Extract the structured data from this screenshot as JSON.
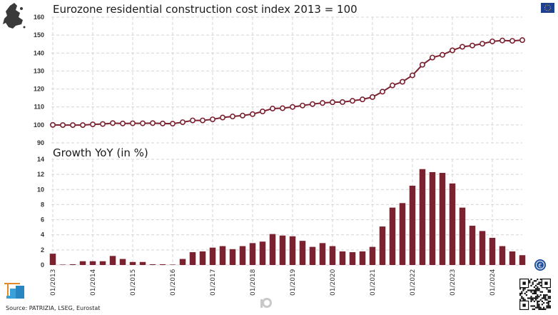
{
  "chart_data": [
    {
      "type": "line",
      "title": "Eurozone residential construction cost index 2013 = 100",
      "xlabel": "",
      "ylabel": "",
      "ylim": [
        90,
        160
      ],
      "yticks": [
        90,
        100,
        110,
        120,
        130,
        140,
        150,
        160
      ],
      "grid": true,
      "frequency": "quarterly",
      "x_start": "Q1 2013",
      "series": [
        {
          "name": "Construction cost index",
          "color": "#7b2231",
          "marker": "hollow-circle",
          "values": [
            100.0,
            99.9,
            99.9,
            99.9,
            100.3,
            100.5,
            101.0,
            100.8,
            100.9,
            100.9,
            101.0,
            100.8,
            100.7,
            101.5,
            102.5,
            102.5,
            103.1,
            104.1,
            104.7,
            105.2,
            106.0,
            107.5,
            109.1,
            109.3,
            110.0,
            110.8,
            111.6,
            112.2,
            112.6,
            112.7,
            113.4,
            114.2,
            115.5,
            118.5,
            122.0,
            124.0,
            127.6,
            133.5,
            137.5,
            139.0,
            141.5,
            143.5,
            144.2,
            145.2,
            146.5,
            147.0,
            146.8,
            147.2
          ]
        }
      ]
    },
    {
      "type": "bar",
      "title": "Growth YoY (in %)",
      "xlabel": "",
      "ylabel": "",
      "ylim": [
        0,
        14
      ],
      "yticks": [
        0,
        2,
        4,
        6,
        8,
        10,
        12,
        14
      ],
      "grid": true,
      "frequency": "quarterly",
      "x_start": "Q1 2013",
      "xtick_labels": [
        "01/2013",
        "01/2014",
        "01/2015",
        "01/2016",
        "01/2017",
        "01/2018",
        "01/2019",
        "01/2020",
        "01/2021",
        "01/2022",
        "01/2023",
        "01/2024"
      ],
      "series": [
        {
          "name": "Growth YoY",
          "color": "#7b2231",
          "values": [
            1.5,
            0.0,
            0.1,
            0.5,
            0.5,
            0.5,
            1.2,
            0.8,
            0.4,
            0.4,
            0.1,
            0.1,
            0.0,
            0.8,
            1.7,
            1.8,
            2.3,
            2.5,
            2.1,
            2.5,
            2.9,
            3.1,
            4.1,
            3.9,
            3.8,
            3.2,
            2.4,
            2.9,
            2.5,
            1.8,
            1.7,
            1.8,
            2.4,
            5.1,
            7.6,
            8.2,
            10.5,
            12.7,
            12.3,
            12.2,
            10.8,
            7.6,
            5.2,
            4.5,
            3.6,
            2.5,
            1.8,
            1.3
          ]
        }
      ]
    }
  ],
  "footer": {
    "source": "Source: PATRIZIA, LSEG, Eurostat"
  },
  "icons": {
    "top_left": "europe-map-icon",
    "top_right": "eu-flag-icon",
    "bottom_left": "construction-crane-icon",
    "bottom_center": "cement-mixer-icon",
    "bottom_right_1": "euro-coin-icon",
    "bottom_right_2": "qr-code-icon"
  },
  "colors": {
    "series": "#7b2231",
    "grid": "#d4d4d4",
    "marker_fill": "#ffffff"
  }
}
